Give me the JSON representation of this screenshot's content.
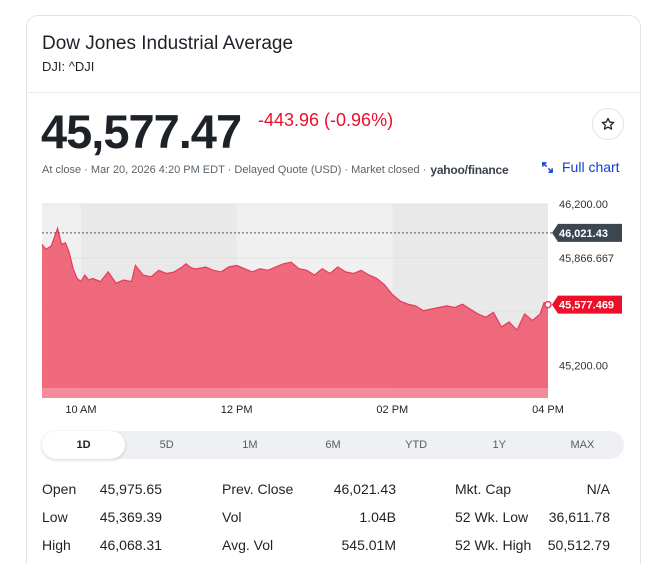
{
  "header": {
    "title": "Dow Jones Industrial Average",
    "symbol": "DJI: ^DJI"
  },
  "quote": {
    "price": "45,577.47",
    "change": "-443.96 (-0.96%)",
    "meta_text": "At close · Mar 20, 2026 4:20 PM EDT · Delayed Quote (USD) · Market closed ·",
    "provider": "yahoo/finance",
    "full_chart_label": "Full chart",
    "change_color": "#eb0f29"
  },
  "chart_data": {
    "type": "area",
    "x_tick_labels": [
      "10 AM",
      "12 PM",
      "02 PM",
      "04 PM"
    ],
    "y_tick_labels": [
      "46,200.00",
      "45,866.667",
      "45,200.00"
    ],
    "prev_close_label": "46,021.43",
    "last_price_label": "45,577.469",
    "ylim": [
      45000,
      46200
    ],
    "prev_close": 46021.43,
    "last_price": 45577.469,
    "grid": true,
    "color": "#f0526a",
    "x_hours": [
      9.5,
      9.55,
      9.62,
      9.7,
      9.75,
      9.8,
      9.85,
      9.9,
      9.95,
      10.0,
      10.05,
      10.1,
      10.15,
      10.25,
      10.35,
      10.45,
      10.55,
      10.65,
      10.7,
      10.8,
      10.9,
      11.0,
      11.1,
      11.2,
      11.3,
      11.35,
      11.4,
      11.45,
      11.5,
      11.6,
      11.7,
      11.8,
      11.9,
      12.0,
      12.1,
      12.2,
      12.3,
      12.4,
      12.5,
      12.6,
      12.7,
      12.8,
      12.9,
      13.0,
      13.1,
      13.2,
      13.3,
      13.4,
      13.5,
      13.6,
      13.7,
      13.8,
      13.9,
      14.0,
      14.1,
      14.2,
      14.3,
      14.4,
      14.5,
      14.6,
      14.7,
      14.8,
      14.9,
      15.0,
      15.1,
      15.2,
      15.3,
      15.4,
      15.5,
      15.6,
      15.7,
      15.8,
      15.9,
      15.95,
      16.0
    ],
    "values": [
      45950,
      45920,
      45940,
      46050,
      45950,
      45960,
      45900,
      45800,
      45740,
      45720,
      45760,
      45730,
      45740,
      45720,
      45780,
      45710,
      45730,
      45720,
      45820,
      45760,
      45750,
      45790,
      45770,
      45780,
      45810,
      45830,
      45810,
      45800,
      45800,
      45810,
      45790,
      45780,
      45810,
      45820,
      45800,
      45780,
      45800,
      45790,
      45810,
      45830,
      45840,
      45800,
      45790,
      45760,
      45800,
      45770,
      45810,
      45780,
      45770,
      45790,
      45760,
      45740,
      45700,
      45640,
      45600,
      45580,
      45570,
      45540,
      45550,
      45560,
      45570,
      45560,
      45580,
      45550,
      45520,
      45500,
      45530,
      45440,
      45470,
      45420,
      45520,
      45480,
      45520,
      45590,
      45577
    ]
  },
  "range_tabs": [
    "1D",
    "5D",
    "1M",
    "6M",
    "YTD",
    "1Y",
    "MAX"
  ],
  "range_active": "1D",
  "stats": {
    "col1": [
      {
        "label": "Open",
        "value": "45,975.65"
      },
      {
        "label": "Low",
        "value": "45,369.39"
      },
      {
        "label": "High",
        "value": "46,068.31"
      }
    ],
    "col2": [
      {
        "label": "Prev. Close",
        "value": "46,021.43"
      },
      {
        "label": "Vol",
        "value": "1.04B"
      },
      {
        "label": "Avg. Vol",
        "value": "545.01M"
      }
    ],
    "col3": [
      {
        "label": "Mkt. Cap",
        "value": "N/A"
      },
      {
        "label": "52 Wk. Low",
        "value": "36,611.78"
      },
      {
        "label": "52 Wk. High",
        "value": "50,512.79"
      }
    ]
  }
}
